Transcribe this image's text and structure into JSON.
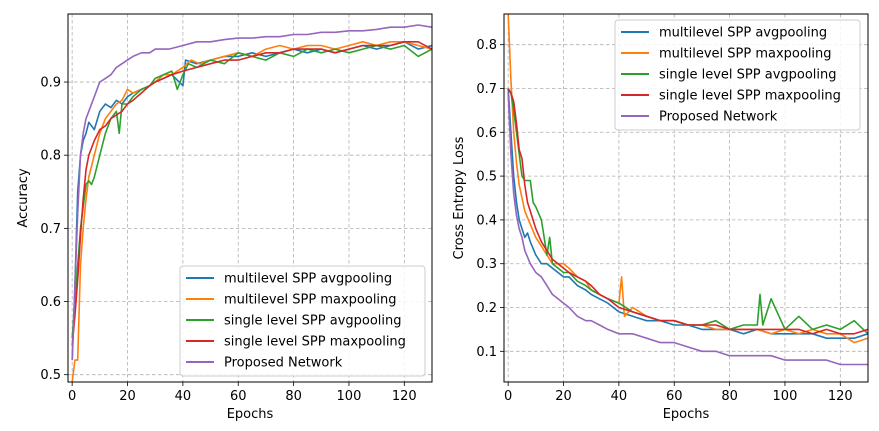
{
  "chart_data": [
    {
      "type": "line",
      "xlabel": "Epochs",
      "ylabel": "Accuracy",
      "xlim": [
        -1.5,
        130
      ],
      "ylim": [
        0.49,
        0.993
      ],
      "xticks": [
        0,
        20,
        40,
        60,
        80,
        100,
        120
      ],
      "yticks": [
        0.5,
        0.6,
        0.7,
        0.8,
        0.9
      ],
      "grid": true,
      "legend_position": "lower-right",
      "series": [
        {
          "name": "multilevel SPP avgpooling",
          "color": "#1f77b4",
          "x": [
            0,
            1,
            2,
            3,
            4,
            5,
            6,
            8,
            10,
            12,
            14,
            16,
            18,
            20,
            22,
            25,
            28,
            30,
            33,
            36,
            40,
            41,
            45,
            50,
            55,
            60,
            65,
            70,
            75,
            80,
            85,
            90,
            95,
            100,
            105,
            110,
            115,
            120,
            125,
            130
          ],
          "y": [
            0.52,
            0.62,
            0.75,
            0.8,
            0.82,
            0.83,
            0.845,
            0.835,
            0.86,
            0.87,
            0.865,
            0.875,
            0.87,
            0.88,
            0.885,
            0.89,
            0.895,
            0.9,
            0.905,
            0.91,
            0.895,
            0.93,
            0.925,
            0.93,
            0.935,
            0.935,
            0.94,
            0.935,
            0.94,
            0.945,
            0.94,
            0.945,
            0.94,
            0.945,
            0.95,
            0.945,
            0.95,
            0.955,
            0.945,
            0.95
          ]
        },
        {
          "name": "multilevel SPP maxpooling",
          "color": "#ff7f0e",
          "x": [
            0,
            1,
            2,
            3,
            4,
            5,
            6,
            8,
            10,
            12,
            14,
            16,
            18,
            20,
            22,
            25,
            28,
            30,
            33,
            36,
            40,
            43,
            46,
            50,
            55,
            60,
            65,
            70,
            75,
            80,
            85,
            90,
            95,
            100,
            105,
            110,
            115,
            120,
            125,
            130
          ],
          "y": [
            0.49,
            0.52,
            0.52,
            0.65,
            0.7,
            0.74,
            0.77,
            0.8,
            0.83,
            0.85,
            0.86,
            0.87,
            0.875,
            0.89,
            0.885,
            0.89,
            0.895,
            0.9,
            0.91,
            0.91,
            0.92,
            0.93,
            0.925,
            0.93,
            0.935,
            0.94,
            0.935,
            0.945,
            0.95,
            0.945,
            0.95,
            0.95,
            0.945,
            0.95,
            0.955,
            0.95,
            0.955,
            0.955,
            0.95,
            0.945
          ]
        },
        {
          "name": "single level SPP avgpooling",
          "color": "#2ca02c",
          "x": [
            0,
            1,
            2,
            3,
            4,
            5,
            6,
            7,
            8,
            10,
            12,
            14,
            16,
            17,
            18,
            20,
            22,
            25,
            28,
            30,
            33,
            36,
            38,
            40,
            42,
            45,
            50,
            55,
            60,
            65,
            70,
            75,
            80,
            85,
            90,
            95,
            100,
            105,
            110,
            115,
            120,
            125,
            130
          ],
          "y": [
            0.55,
            0.6,
            0.65,
            0.7,
            0.73,
            0.76,
            0.765,
            0.76,
            0.77,
            0.8,
            0.83,
            0.85,
            0.86,
            0.83,
            0.87,
            0.87,
            0.88,
            0.89,
            0.895,
            0.905,
            0.91,
            0.915,
            0.89,
            0.91,
            0.925,
            0.92,
            0.93,
            0.925,
            0.94,
            0.935,
            0.93,
            0.94,
            0.935,
            0.945,
            0.94,
            0.945,
            0.94,
            0.945,
            0.95,
            0.945,
            0.95,
            0.935,
            0.945
          ]
        },
        {
          "name": "single level SPP maxpooling",
          "color": "#d62728",
          "x": [
            0,
            1,
            2,
            3,
            4,
            5,
            6,
            8,
            10,
            12,
            14,
            16,
            18,
            20,
            22,
            25,
            28,
            30,
            33,
            36,
            40,
            45,
            50,
            55,
            60,
            65,
            70,
            75,
            80,
            85,
            90,
            95,
            100,
            105,
            110,
            115,
            120,
            125,
            130
          ],
          "y": [
            0.54,
            0.58,
            0.63,
            0.69,
            0.74,
            0.78,
            0.8,
            0.82,
            0.835,
            0.84,
            0.85,
            0.855,
            0.86,
            0.87,
            0.875,
            0.885,
            0.895,
            0.9,
            0.905,
            0.91,
            0.915,
            0.92,
            0.925,
            0.93,
            0.93,
            0.935,
            0.94,
            0.94,
            0.945,
            0.945,
            0.945,
            0.94,
            0.945,
            0.95,
            0.95,
            0.95,
            0.955,
            0.955,
            0.945
          ]
        },
        {
          "name": "Proposed Network",
          "color": "#9467bd",
          "x": [
            0,
            1,
            2,
            3,
            4,
            5,
            6,
            8,
            10,
            12,
            14,
            16,
            18,
            20,
            22,
            25,
            28,
            30,
            35,
            40,
            45,
            50,
            55,
            60,
            65,
            70,
            75,
            80,
            85,
            90,
            95,
            100,
            105,
            110,
            115,
            120,
            125,
            130
          ],
          "y": [
            0.52,
            0.62,
            0.72,
            0.8,
            0.83,
            0.85,
            0.86,
            0.88,
            0.9,
            0.905,
            0.91,
            0.92,
            0.925,
            0.93,
            0.935,
            0.94,
            0.94,
            0.945,
            0.945,
            0.95,
            0.955,
            0.955,
            0.958,
            0.96,
            0.96,
            0.962,
            0.962,
            0.965,
            0.965,
            0.968,
            0.968,
            0.97,
            0.97,
            0.972,
            0.975,
            0.975,
            0.978,
            0.975
          ]
        }
      ]
    },
    {
      "type": "line",
      "xlabel": "Epochs",
      "ylabel": "Cross Entropy Loss",
      "xlim": [
        -1.5,
        130
      ],
      "ylim": [
        0.03,
        0.87
      ],
      "xticks": [
        0,
        20,
        40,
        60,
        80,
        100,
        120
      ],
      "yticks": [
        0.1,
        0.2,
        0.3,
        0.4,
        0.5,
        0.6,
        0.7,
        0.8
      ],
      "grid": true,
      "legend_position": "upper-right",
      "series": [
        {
          "name": "multilevel SPP avgpooling",
          "color": "#1f77b4",
          "x": [
            0,
            1,
            2,
            3,
            4,
            5,
            6,
            7,
            8,
            10,
            12,
            14,
            16,
            18,
            20,
            22,
            25,
            28,
            30,
            33,
            36,
            40,
            45,
            50,
            55,
            60,
            65,
            70,
            75,
            80,
            85,
            90,
            95,
            100,
            105,
            110,
            115,
            120,
            125,
            130
          ],
          "y": [
            0.7,
            0.6,
            0.5,
            0.44,
            0.4,
            0.38,
            0.36,
            0.37,
            0.35,
            0.32,
            0.3,
            0.3,
            0.29,
            0.28,
            0.27,
            0.27,
            0.25,
            0.24,
            0.23,
            0.22,
            0.21,
            0.19,
            0.18,
            0.17,
            0.17,
            0.16,
            0.16,
            0.15,
            0.15,
            0.15,
            0.14,
            0.15,
            0.14,
            0.14,
            0.14,
            0.14,
            0.13,
            0.13,
            0.13,
            0.14
          ]
        },
        {
          "name": "multilevel SPP maxpooling",
          "color": "#ff7f0e",
          "x": [
            0,
            1,
            2,
            3,
            4,
            5,
            6,
            8,
            10,
            12,
            14,
            16,
            18,
            20,
            22,
            25,
            28,
            30,
            33,
            36,
            40,
            41,
            42,
            45,
            50,
            55,
            60,
            65,
            70,
            75,
            80,
            85,
            90,
            95,
            100,
            105,
            110,
            115,
            120,
            125,
            130
          ],
          "y": [
            0.87,
            0.72,
            0.6,
            0.53,
            0.48,
            0.45,
            0.42,
            0.39,
            0.36,
            0.34,
            0.32,
            0.3,
            0.3,
            0.3,
            0.29,
            0.27,
            0.26,
            0.24,
            0.23,
            0.22,
            0.21,
            0.27,
            0.18,
            0.2,
            0.18,
            0.17,
            0.17,
            0.16,
            0.16,
            0.15,
            0.15,
            0.15,
            0.15,
            0.14,
            0.15,
            0.14,
            0.15,
            0.14,
            0.14,
            0.12,
            0.13
          ]
        },
        {
          "name": "single level SPP avgpooling",
          "color": "#2ca02c",
          "x": [
            0,
            1,
            2,
            3,
            4,
            5,
            6,
            7,
            8,
            9,
            10,
            12,
            14,
            15,
            16,
            18,
            20,
            22,
            25,
            28,
            30,
            33,
            36,
            40,
            45,
            50,
            55,
            60,
            65,
            70,
            75,
            80,
            85,
            90,
            91,
            92,
            95,
            100,
            105,
            110,
            115,
            120,
            125,
            130
          ],
          "y": [
            0.7,
            0.69,
            0.65,
            0.6,
            0.55,
            0.5,
            0.49,
            0.49,
            0.49,
            0.44,
            0.43,
            0.4,
            0.32,
            0.36,
            0.3,
            0.29,
            0.28,
            0.28,
            0.26,
            0.25,
            0.24,
            0.23,
            0.22,
            0.21,
            0.19,
            0.18,
            0.17,
            0.17,
            0.16,
            0.16,
            0.17,
            0.15,
            0.16,
            0.16,
            0.23,
            0.16,
            0.22,
            0.15,
            0.18,
            0.15,
            0.16,
            0.15,
            0.17,
            0.14
          ]
        },
        {
          "name": "single level SPP maxpooling",
          "color": "#d62728",
          "x": [
            0,
            1,
            2,
            3,
            4,
            5,
            6,
            7,
            8,
            10,
            12,
            14,
            16,
            18,
            20,
            22,
            25,
            28,
            30,
            33,
            36,
            40,
            45,
            50,
            55,
            60,
            65,
            70,
            75,
            80,
            85,
            90,
            95,
            100,
            105,
            110,
            115,
            120,
            125,
            130
          ],
          "y": [
            0.7,
            0.69,
            0.67,
            0.62,
            0.56,
            0.54,
            0.48,
            0.44,
            0.42,
            0.38,
            0.35,
            0.33,
            0.31,
            0.3,
            0.29,
            0.28,
            0.27,
            0.26,
            0.25,
            0.23,
            0.22,
            0.2,
            0.19,
            0.18,
            0.17,
            0.17,
            0.16,
            0.16,
            0.16,
            0.15,
            0.15,
            0.15,
            0.15,
            0.15,
            0.15,
            0.14,
            0.15,
            0.14,
            0.14,
            0.15
          ]
        },
        {
          "name": "Proposed Network",
          "color": "#9467bd",
          "x": [
            0,
            1,
            2,
            3,
            4,
            5,
            6,
            8,
            10,
            12,
            14,
            16,
            18,
            20,
            22,
            25,
            28,
            30,
            33,
            36,
            40,
            45,
            50,
            55,
            60,
            65,
            70,
            75,
            80,
            85,
            90,
            95,
            100,
            105,
            110,
            115,
            120,
            125,
            130
          ],
          "y": [
            0.69,
            0.55,
            0.46,
            0.41,
            0.38,
            0.36,
            0.33,
            0.3,
            0.28,
            0.27,
            0.25,
            0.23,
            0.22,
            0.21,
            0.2,
            0.18,
            0.17,
            0.17,
            0.16,
            0.15,
            0.14,
            0.14,
            0.13,
            0.12,
            0.12,
            0.11,
            0.1,
            0.1,
            0.09,
            0.09,
            0.09,
            0.09,
            0.08,
            0.08,
            0.08,
            0.08,
            0.07,
            0.07,
            0.07
          ]
        }
      ]
    }
  ]
}
